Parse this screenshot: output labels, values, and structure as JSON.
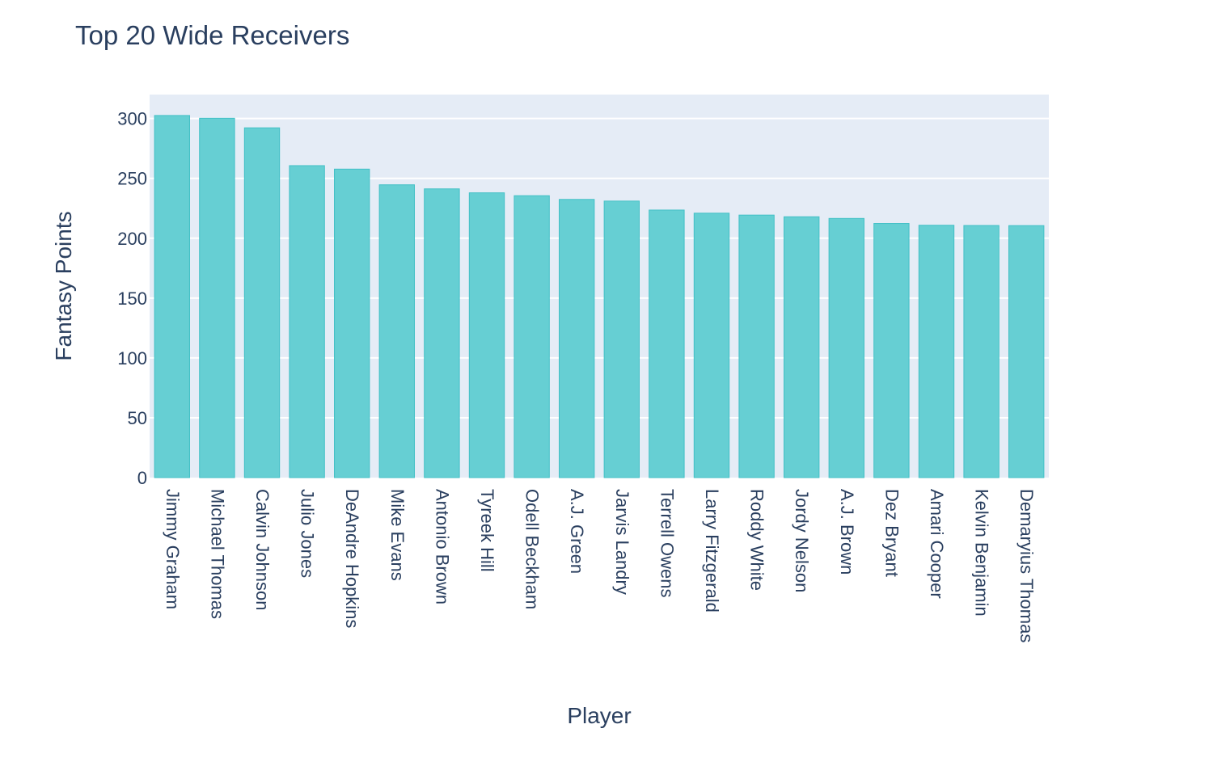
{
  "chart_data": {
    "type": "bar",
    "title": "Top 20 Wide Receivers",
    "xlabel": "Player",
    "ylabel": "Fantasy Points",
    "categories": [
      "Jimmy Graham",
      "Michael Thomas",
      "Calvin Johnson",
      "Julio Jones",
      "DeAndre Hopkins",
      "Mike Evans",
      "Antonio Brown",
      "Tyreek Hill",
      "Odell Beckham",
      "A.J. Green",
      "Jarvis Landry",
      "Terrell Owens",
      "Larry Fitzgerald",
      "Roddy White",
      "Jordy Nelson",
      "A.J. Brown",
      "Dez Bryant",
      "Amari Cooper",
      "Kelvin Benjamin",
      "Demaryius Thomas"
    ],
    "values": [
      302.5,
      300.2,
      292.2,
      260.6,
      257.7,
      244.6,
      241.2,
      237.9,
      235.5,
      232.4,
      231.0,
      223.5,
      220.9,
      219.3,
      217.9,
      216.5,
      212.3,
      210.8,
      210.6,
      210.5
    ],
    "ylim": [
      0,
      320
    ],
    "yticks": [
      0,
      50,
      100,
      150,
      200,
      250,
      300
    ],
    "grid": true,
    "legend": "none",
    "colors": {
      "bar_fill": "#66cfd3",
      "bar_outline": "#42c0c6",
      "plot_background": "#e5ecf6",
      "gridline": "#ffffff",
      "text": "#2a3f5f"
    }
  }
}
